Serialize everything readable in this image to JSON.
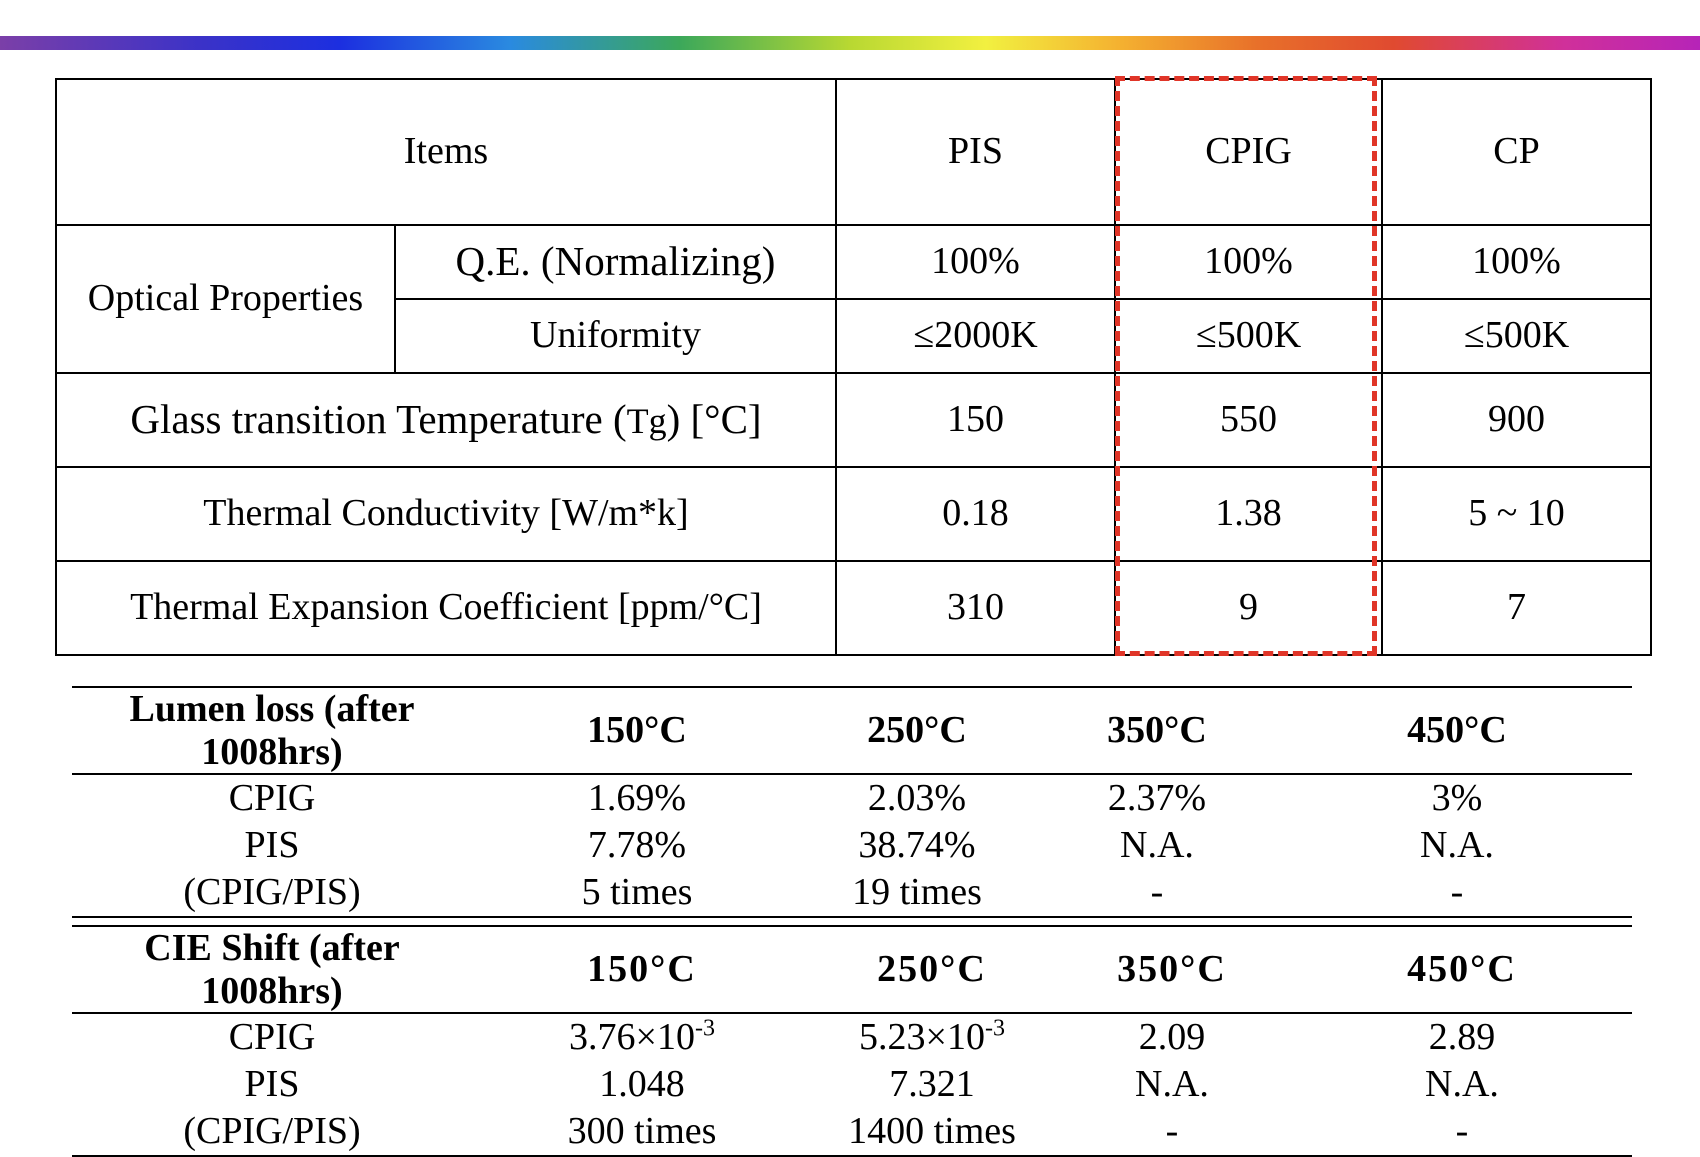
{
  "props_table": {
    "header": {
      "items": "Items",
      "pis": "PIS",
      "cpig": "CPIG",
      "cp": "CP"
    },
    "optical_properties": "Optical Properties",
    "rows": [
      {
        "label": "Q.E. (Normalizing)",
        "pis": "100%",
        "cpig": "100%",
        "cp": "100%"
      },
      {
        "label": "Uniformity",
        "pis": "≤2000K",
        "cpig": "≤500K",
        "cp": "≤500K"
      },
      {
        "label_main": "Glass transition Temperature (",
        "label_tg": "Tg",
        "label_tail": ") [°C]",
        "pis": "150",
        "cpig": "550",
        "cp": "900"
      },
      {
        "label": "Thermal Conductivity [W/m*k]",
        "pis": "0.18",
        "cpig": "1.38",
        "cp": "5 ~ 10"
      },
      {
        "label": "Thermal Expansion Coefficient [ppm/°C]",
        "pis": "310",
        "cpig": "9",
        "cp": "7"
      }
    ],
    "highlight_color": "#e03528"
  },
  "lumen_table": {
    "header": [
      "Lumen loss (after 1008hrs)",
      "150°C",
      "250°C",
      "350°C",
      "450°C"
    ],
    "rows": [
      [
        "CPIG",
        "1.69%",
        "2.03%",
        "2.37%",
        "3%"
      ],
      [
        "PIS",
        "7.78%",
        "38.74%",
        "N.A.",
        "N.A."
      ],
      [
        "(CPIG/PIS)",
        "5 times",
        "19 times",
        "-",
        "-"
      ]
    ]
  },
  "cie_table": {
    "header": [
      "CIE Shift (after 1008hrs)",
      "150°C",
      "250°C",
      "350°C",
      "450°C"
    ],
    "rows": [
      [
        "CPIG",
        {
          "base": "3.76×10",
          "exp": "-3"
        },
        {
          "base": "5.23×10",
          "exp": "-3"
        },
        "2.09",
        "2.89"
      ],
      [
        "PIS",
        "1.048",
        "7.321",
        "N.A.",
        "N.A."
      ],
      [
        "(CPIG/PIS)",
        "300 times",
        "1400 times",
        "-",
        "-"
      ]
    ]
  },
  "rainbow_colors": [
    "#7b3fa8",
    "#1c2fe0",
    "#3ca85a",
    "#f2f040",
    "#e8702a",
    "#b624b8"
  ]
}
